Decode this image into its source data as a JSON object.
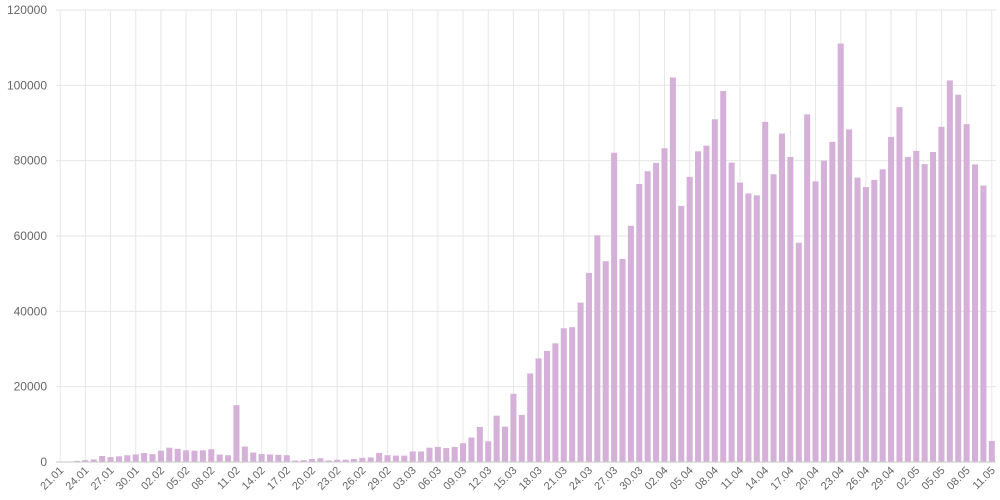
{
  "chart_data": {
    "type": "bar",
    "color": "#d5b1d9",
    "grid": true,
    "ylim": [
      0,
      120000
    ],
    "yticks": [
      0,
      20000,
      40000,
      60000,
      80000,
      100000,
      120000
    ],
    "x_tick_labels": [
      "21.01",
      "24.01",
      "27.01",
      "30.01",
      "02.02",
      "05.02",
      "08.02",
      "11.02",
      "14.02",
      "17.02",
      "20.02",
      "23.02",
      "26.02",
      "29.02",
      "03.03",
      "06.03",
      "09.03",
      "12.03",
      "15.03",
      "18.03",
      "21.03",
      "24.03",
      "27.03",
      "30.03",
      "02.04",
      "05.04",
      "08.04",
      "11.04",
      "14.04",
      "17.04",
      "20.04",
      "23.04",
      "26.04",
      "29.04",
      "02.05",
      "05.05",
      "08.05",
      "11.05"
    ],
    "values": [
      0,
      100,
      300,
      500,
      700,
      1600,
      1300,
      1500,
      1800,
      2000,
      2400,
      2100,
      3000,
      3800,
      3500,
      3100,
      3000,
      3100,
      3400,
      2000,
      1800,
      15100,
      4100,
      2500,
      2100,
      2000,
      1900,
      1800,
      400,
      500,
      800,
      1000,
      400,
      600,
      600,
      800,
      1100,
      1200,
      2400,
      1800,
      1700,
      1700,
      2800,
      2800,
      3800,
      4000,
      3700,
      4000,
      5000,
      6500,
      9300,
      5500,
      12300,
      9400,
      18100,
      12500,
      23500,
      27500,
      29500,
      31500,
      35500,
      35800,
      42300,
      50200,
      60200,
      53300,
      82100,
      53900,
      62700,
      73800,
      77200,
      79400,
      83300,
      102100,
      68000,
      75700,
      82500,
      84000,
      91000,
      98500,
      79500,
      74200,
      71300,
      70800,
      90300,
      76400,
      87200,
      81000,
      58200,
      92300,
      74500,
      80000,
      85000,
      111100,
      88300,
      75500,
      73000,
      74900,
      77700,
      86300,
      94200,
      81000,
      82600,
      79100,
      82300,
      89000,
      101300,
      97500,
      89700,
      79000,
      73400,
      5600
    ]
  }
}
